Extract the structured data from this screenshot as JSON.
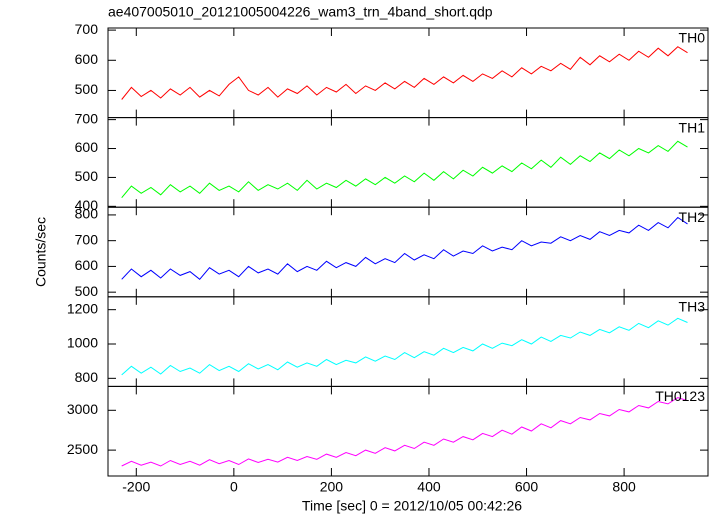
{
  "chart_data": {
    "type": "line",
    "title": "ae407005010_20121005004226_wam3_trn_4band_short.qdp",
    "xlabel": "Time [sec] 0 = 2012/10/05 00:42:26",
    "ylabel": "Counts/sec",
    "xlim": [
      -258,
      972
    ],
    "xticks": [
      -200,
      0,
      200,
      400,
      600,
      800
    ],
    "x": [
      -230,
      -210,
      -190,
      -170,
      -150,
      -130,
      -110,
      -90,
      -70,
      -50,
      -30,
      -10,
      10,
      30,
      50,
      70,
      90,
      110,
      130,
      150,
      170,
      190,
      210,
      230,
      250,
      270,
      290,
      310,
      330,
      350,
      370,
      390,
      410,
      430,
      450,
      470,
      490,
      510,
      530,
      550,
      570,
      590,
      610,
      630,
      650,
      670,
      690,
      710,
      730,
      750,
      770,
      790,
      810,
      830,
      850,
      870,
      890,
      910,
      930
    ],
    "panels": [
      {
        "name": "TH0",
        "color": "#ff0000",
        "ylim": [
          410,
          707
        ],
        "yticks": [
          500,
          600,
          700
        ],
        "values": [
          470,
          510,
          480,
          500,
          475,
          505,
          485,
          510,
          478,
          500,
          482,
          520,
          545,
          500,
          485,
          510,
          478,
          505,
          490,
          515,
          485,
          510,
          495,
          520,
          490,
          515,
          500,
          525,
          505,
          530,
          510,
          540,
          520,
          545,
          525,
          550,
          530,
          555,
          540,
          565,
          545,
          575,
          555,
          580,
          565,
          590,
          570,
          610,
          585,
          615,
          595,
          620,
          600,
          630,
          610,
          640,
          615,
          645,
          625
        ]
      },
      {
        "name": "TH1",
        "color": "#00ff00",
        "ylim": [
          397,
          707
        ],
        "yticks": [
          400,
          500,
          600,
          700
        ],
        "values": [
          430,
          470,
          445,
          465,
          440,
          475,
          450,
          470,
          445,
          480,
          455,
          470,
          450,
          485,
          455,
          475,
          460,
          480,
          455,
          490,
          460,
          480,
          465,
          490,
          470,
          495,
          475,
          500,
          480,
          505,
          485,
          515,
          490,
          520,
          495,
          525,
          505,
          535,
          515,
          540,
          520,
          550,
          530,
          560,
          535,
          570,
          545,
          575,
          555,
          585,
          565,
          595,
          575,
          600,
          585,
          610,
          590,
          625,
          605
        ]
      },
      {
        "name": "TH2",
        "color": "#0000ff",
        "ylim": [
          482,
          830
        ],
        "yticks": [
          500,
          600,
          700,
          800
        ],
        "values": [
          550,
          590,
          560,
          585,
          555,
          590,
          565,
          580,
          550,
          595,
          570,
          585,
          560,
          600,
          575,
          590,
          570,
          610,
          580,
          600,
          585,
          620,
          595,
          615,
          600,
          635,
          610,
          630,
          615,
          650,
          625,
          645,
          630,
          665,
          640,
          660,
          650,
          680,
          660,
          675,
          665,
          700,
          680,
          695,
          690,
          715,
          700,
          720,
          705,
          735,
          720,
          740,
          730,
          760,
          740,
          770,
          750,
          790,
          765
        ]
      },
      {
        "name": "TH3",
        "color": "#00ffff",
        "ylim": [
          753,
          1275
        ],
        "yticks": [
          800,
          1000,
          1200
        ],
        "values": [
          820,
          870,
          830,
          865,
          825,
          875,
          840,
          860,
          830,
          880,
          845,
          870,
          840,
          885,
          855,
          880,
          850,
          895,
          865,
          890,
          870,
          910,
          880,
          905,
          890,
          925,
          900,
          930,
          910,
          950,
          920,
          955,
          935,
          975,
          950,
          980,
          960,
          1000,
          975,
          1005,
          990,
          1025,
          1000,
          1040,
          1015,
          1050,
          1035,
          1070,
          1050,
          1085,
          1065,
          1100,
          1080,
          1120,
          1095,
          1135,
          1110,
          1150,
          1125
        ]
      },
      {
        "name": "TH0123",
        "color": "#ff00ff",
        "ylim": [
          2175,
          3300
        ],
        "yticks": [
          2500,
          3000
        ],
        "values": [
          2300,
          2360,
          2310,
          2350,
          2300,
          2370,
          2320,
          2360,
          2310,
          2380,
          2330,
          2370,
          2320,
          2390,
          2345,
          2385,
          2350,
          2410,
          2370,
          2420,
          2385,
          2450,
          2410,
          2470,
          2430,
          2500,
          2460,
          2530,
          2490,
          2560,
          2520,
          2600,
          2560,
          2640,
          2600,
          2670,
          2630,
          2710,
          2670,
          2750,
          2700,
          2790,
          2740,
          2830,
          2780,
          2870,
          2830,
          2910,
          2880,
          2960,
          2930,
          3010,
          2980,
          3060,
          3030,
          3110,
          3080,
          3160,
          3120
        ]
      }
    ]
  }
}
